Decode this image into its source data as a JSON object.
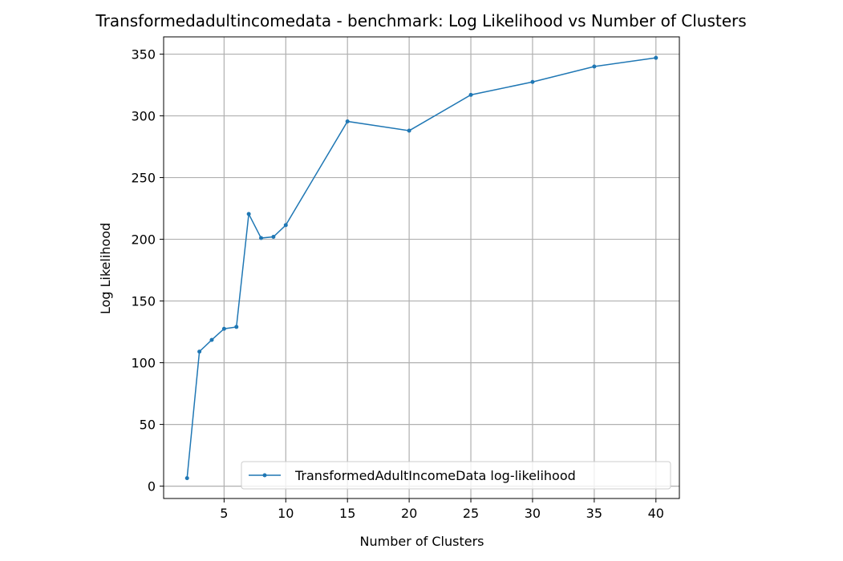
{
  "chart_data": {
    "type": "line",
    "title": "Transformedadultincomedata - benchmark: Log Likelihood vs Number of Clusters",
    "xlabel": "Number of Clusters",
    "ylabel": "Log Likelihood",
    "xlim": [
      0.1,
      41.9
    ],
    "ylim": [
      -10,
      364
    ],
    "xticks": [
      5,
      10,
      15,
      20,
      25,
      30,
      35,
      40
    ],
    "yticks": [
      0,
      50,
      100,
      150,
      200,
      250,
      300,
      350
    ],
    "grid": true,
    "legend_position": "lower-right",
    "series": [
      {
        "name": "TransformedAdultIncomeData log-likelihood",
        "color": "#1f77b4",
        "marker": "circle",
        "x": [
          2,
          3,
          4,
          5,
          6,
          7,
          8,
          9,
          10,
          15,
          20,
          25,
          30,
          35,
          40
        ],
        "y": [
          6.5,
          109,
          118.5,
          127.5,
          129,
          220.5,
          201,
          202,
          211.5,
          295.5,
          288,
          317,
          327.5,
          340,
          347
        ]
      }
    ]
  }
}
